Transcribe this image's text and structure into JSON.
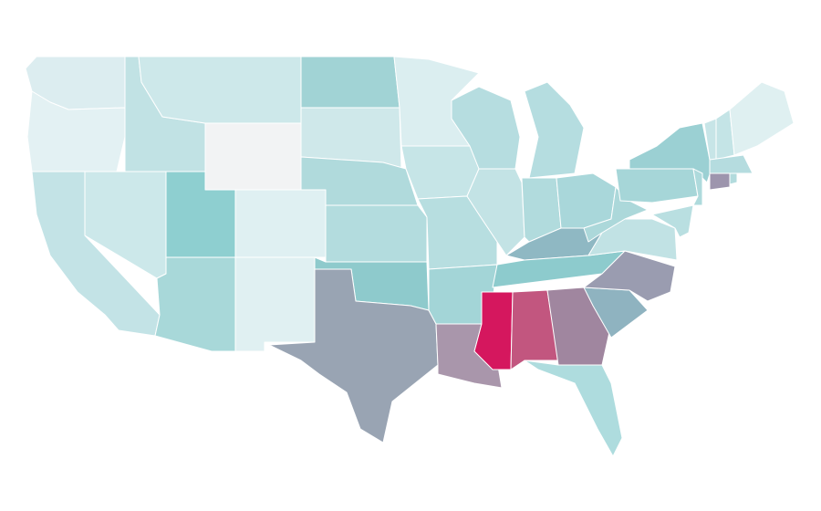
{
  "map": {
    "colors": [
      "#dcedf0",
      "#e3f1f3",
      "#c3e3e6",
      "#cce8ea",
      "#c1e2e4",
      "#cde8ea",
      "#f2f3f4",
      "#8ecfd0",
      "#a8d8d9",
      "#dff0f2",
      "#e0f0f2",
      "#a1d3d5",
      "#cfe8ea",
      "#b0dadc",
      "#b3dcde",
      "#8ecacc",
      "#99a4b3",
      "#dbeef0",
      "#c6e5e7",
      "#b7dee0",
      "#a3d5d7",
      "#a996ab",
      "#b6dde0",
      "#c3e3e5",
      "#b5dde0",
      "#b1dbdd",
      "#a9d7da",
      "#8fb8c3",
      "#8dcbcd",
      "#d5175e",
      "#c2567f",
      "#a0869f",
      "#aedcde",
      "#8fb3c0",
      "#9a9cb0",
      "#c1e2e4",
      "#acd8da",
      "#a6d6d8",
      "#9bd0d3",
      "#aedadc",
      "#b9dfe1",
      "#c7e5e7",
      "#c4e4e6",
      "#dff0f1",
      "#b5dcdf",
      "#9d95ad",
      "#b2dbdd"
    ]
  }
}
